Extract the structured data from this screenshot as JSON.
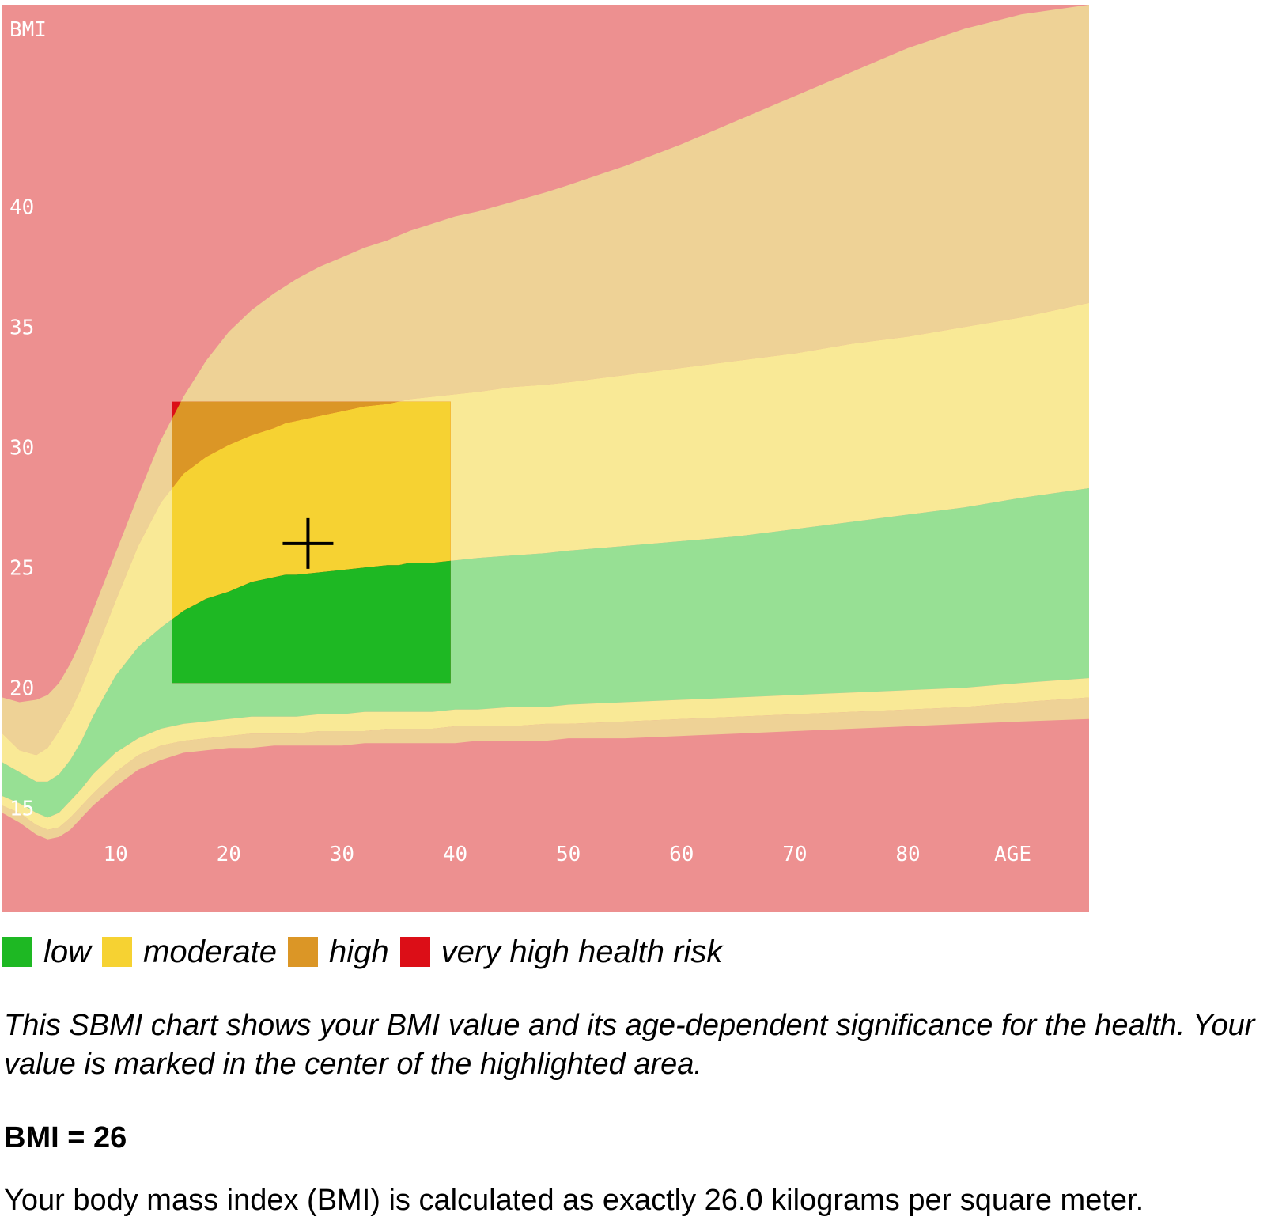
{
  "colors": {
    "very_high": "#ED9090",
    "high": "#EED296",
    "moderate": "#F9E996",
    "low": "#97E094",
    "hl_very_high": "#DC0E17",
    "hl_high": "#DB9626",
    "hl_moderate": "#F6D232",
    "hl_low": "#1EB823",
    "marker": "#000000",
    "tick_text": "#FFFFFF"
  },
  "chart_data": {
    "type": "area",
    "ylabel": "BMI",
    "xlabel": "AGE",
    "xlim": [
      0,
      96
    ],
    "ylim": [
      10.7,
      48.4
    ],
    "x_ticks": [
      10,
      20,
      30,
      40,
      50,
      60,
      70,
      80
    ],
    "y_ticks": [
      15,
      20,
      25,
      30,
      35,
      40
    ],
    "x": [
      0,
      1.5,
      3,
      4,
      5,
      6,
      7,
      8,
      10,
      12,
      14,
      16,
      18,
      20,
      22,
      24,
      25,
      26,
      28,
      30,
      32,
      34,
      35,
      36,
      38,
      40,
      42,
      45,
      48,
      50,
      55,
      60,
      65,
      70,
      75,
      80,
      85,
      90,
      96
    ],
    "boundaries": [
      {
        "name": "very-high-upper",
        "values": [
          19.6,
          19.4,
          19.5,
          19.7,
          20.2,
          21.0,
          22.0,
          23.2,
          25.6,
          28.0,
          30.3,
          32.1,
          33.6,
          34.8,
          35.7,
          36.4,
          36.7,
          37.0,
          37.5,
          37.9,
          38.3,
          38.6,
          38.8,
          39.0,
          39.3,
          39.6,
          39.8,
          40.2,
          40.6,
          40.9,
          41.7,
          42.6,
          43.6,
          44.6,
          45.6,
          46.6,
          47.4,
          48.0,
          48.4
        ]
      },
      {
        "name": "high-upper",
        "values": [
          18.1,
          17.4,
          17.2,
          17.5,
          18.2,
          19.0,
          20.0,
          21.2,
          23.6,
          25.9,
          27.7,
          28.9,
          29.6,
          30.1,
          30.5,
          30.8,
          31.0,
          31.1,
          31.3,
          31.5,
          31.7,
          31.8,
          31.9,
          32.0,
          32.1,
          32.2,
          32.3,
          32.5,
          32.6,
          32.7,
          33.0,
          33.3,
          33.6,
          33.9,
          34.3,
          34.6,
          35.0,
          35.4,
          36.0
        ]
      },
      {
        "name": "moderate-upper",
        "values": [
          16.9,
          16.5,
          16.1,
          16.1,
          16.4,
          17.0,
          17.8,
          18.8,
          20.5,
          21.7,
          22.5,
          23.2,
          23.7,
          24.0,
          24.4,
          24.6,
          24.7,
          24.7,
          24.8,
          24.9,
          25.0,
          25.1,
          25.1,
          25.2,
          25.2,
          25.3,
          25.4,
          25.5,
          25.6,
          25.7,
          25.9,
          26.1,
          26.3,
          26.6,
          26.9,
          27.2,
          27.5,
          27.9,
          28.3
        ]
      },
      {
        "name": "low-upper",
        "values": [
          15.5,
          15.2,
          14.8,
          14.6,
          14.8,
          15.3,
          15.8,
          16.4,
          17.3,
          17.9,
          18.3,
          18.5,
          18.6,
          18.7,
          18.8,
          18.8,
          18.8,
          18.8,
          18.9,
          18.9,
          19.0,
          19.0,
          19.0,
          19.0,
          19.0,
          19.1,
          19.1,
          19.2,
          19.2,
          19.3,
          19.4,
          19.5,
          19.6,
          19.7,
          19.8,
          19.9,
          20.0,
          20.2,
          20.4
        ]
      },
      {
        "name": "moderate-lower",
        "values": [
          15.1,
          14.8,
          14.3,
          14.1,
          14.2,
          14.6,
          15.1,
          15.6,
          16.5,
          17.2,
          17.6,
          17.8,
          17.9,
          18.0,
          18.1,
          18.1,
          18.1,
          18.1,
          18.2,
          18.2,
          18.2,
          18.3,
          18.3,
          18.3,
          18.3,
          18.4,
          18.4,
          18.4,
          18.5,
          18.5,
          18.6,
          18.7,
          18.8,
          18.9,
          19.0,
          19.1,
          19.2,
          19.4,
          19.6
        ]
      },
      {
        "name": "high-lower",
        "values": [
          14.8,
          14.4,
          13.9,
          13.7,
          13.8,
          14.1,
          14.6,
          15.1,
          15.9,
          16.6,
          17.0,
          17.3,
          17.4,
          17.5,
          17.5,
          17.6,
          17.6,
          17.6,
          17.6,
          17.6,
          17.7,
          17.7,
          17.7,
          17.7,
          17.7,
          17.7,
          17.8,
          17.8,
          17.8,
          17.9,
          17.9,
          18.0,
          18.1,
          18.2,
          18.3,
          18.4,
          18.5,
          18.6,
          18.7
        ]
      }
    ],
    "highlight": {
      "x_range": [
        15,
        39.6
      ],
      "y_range": [
        20.2,
        31.9
      ]
    },
    "marker": {
      "age": 27,
      "bmi": 26
    }
  },
  "legend": [
    {
      "label": "low",
      "color_key": "hl_low"
    },
    {
      "label": "moderate",
      "color_key": "hl_moderate"
    },
    {
      "label": "high",
      "color_key": "hl_high"
    },
    {
      "label": "very high health risk",
      "color_key": "hl_very_high"
    }
  ],
  "description": "This SBMI chart shows your BMI value and its age-dependent significance for the health. Your value is marked in the center of the highlighted area.",
  "bmi_heading": "BMI = 26",
  "bmi_sentence": "Your body mass index (BMI) is calculated as exactly 26.0 kilograms per square meter."
}
